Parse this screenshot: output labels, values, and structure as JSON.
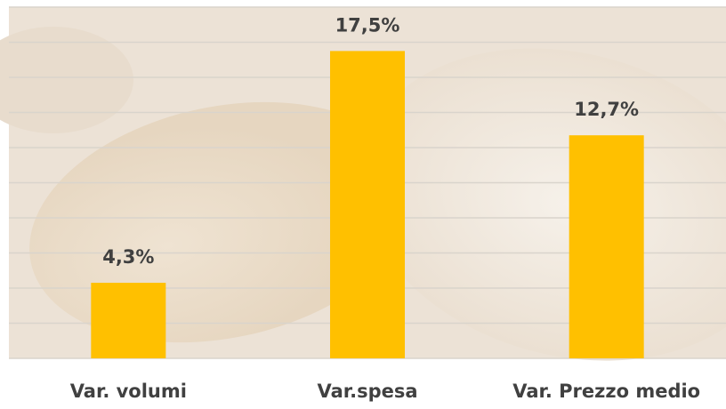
{
  "chart_data": {
    "type": "bar",
    "categories": [
      "Var. volumi",
      "Var.spesa",
      "Var. Prezzo medio"
    ],
    "values": [
      4.3,
      17.5,
      12.7
    ],
    "value_labels": [
      "4,3%",
      "17,5%",
      "12,7%"
    ],
    "color": "#ffc000",
    "ylim": [
      0,
      20
    ],
    "yticks": [
      0,
      2,
      4,
      6,
      8,
      10,
      12,
      14,
      16,
      18,
      20
    ],
    "grid": true
  }
}
